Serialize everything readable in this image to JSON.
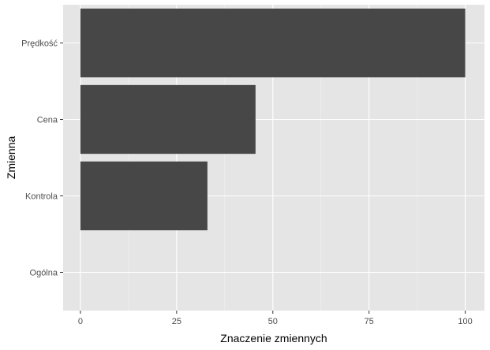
{
  "chart_data": {
    "type": "bar",
    "orientation": "horizontal",
    "categories": [
      "Prędkość",
      "Cena",
      "Kontrola",
      "Ogólna"
    ],
    "values": [
      100,
      45.5,
      33,
      0
    ],
    "xlabel": "Znaczenie zmiennych",
    "ylabel": "Zmienna",
    "xlim": [
      -4.5,
      105
    ],
    "xticks": [
      0,
      25,
      50,
      75,
      100
    ],
    "grid": true,
    "colors": {
      "bar": "#474747",
      "panel": "#e5e5e5",
      "grid_major": "#ffffff",
      "grid_minor": "#f2f2f2",
      "tick_text": "#4d4d4d",
      "tick_mark": "#333333"
    }
  }
}
